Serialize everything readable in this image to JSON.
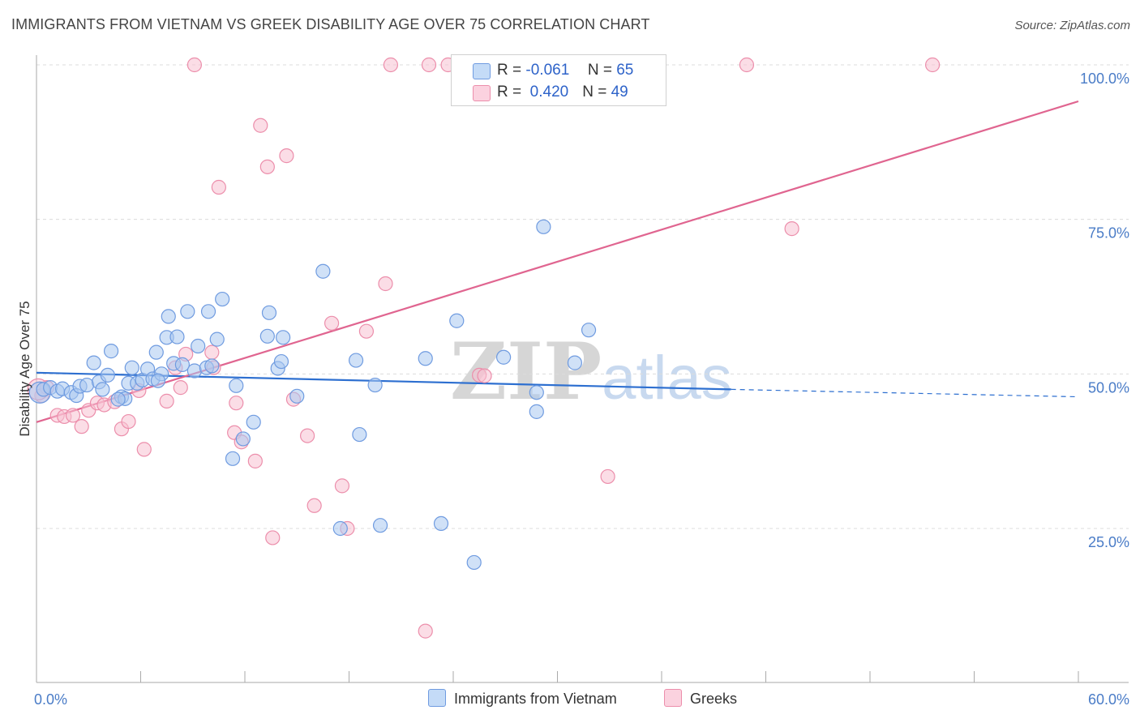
{
  "header": {
    "title": "IMMIGRANTS FROM VIETNAM VS GREEK DISABILITY AGE OVER 75 CORRELATION CHART",
    "source": "Source: ZipAtlas.com"
  },
  "watermark": {
    "zip": "ZIP",
    "atlas": "atlas"
  },
  "stats_legend": [
    {
      "r_label": "R =",
      "r_value": "-0.061",
      "n_label": "N =",
      "n_value": "65",
      "color": "#a9c8f0"
    },
    {
      "r_label": "R =",
      "r_value": " 0.420",
      "n_label": "N =",
      "n_value": "49",
      "color": "#f7b8cc"
    }
  ],
  "bottom_legend": [
    {
      "label": "Immigrants from Vietnam",
      "color": "#a9c8f0"
    },
    {
      "label": "Greeks",
      "color": "#f7b8cc"
    }
  ],
  "colors": {
    "blue_point_fill": "#a9c8f0",
    "blue_point_stroke": "#6f9be0",
    "pink_point_fill": "#f7c1d1",
    "pink_point_stroke": "#ec8eab",
    "blue_line": "#2d6fd0",
    "pink_line": "#e06590",
    "tick_label": "#4a7cc7",
    "grid": "#dcdcdc"
  },
  "chart_data": {
    "type": "scatter",
    "title": "IMMIGRANTS FROM VIETNAM VS GREEK DISABILITY AGE OVER 75 CORRELATION CHART",
    "xlabel": "",
    "ylabel": "Disability Age Over 75",
    "xlim": [
      0,
      60
    ],
    "ylim": [
      0,
      105
    ],
    "x_tick_labels": [
      "0.0%",
      "60.0%"
    ],
    "y_ticks": [
      25,
      50,
      75,
      100
    ],
    "y_tick_labels": [
      "25.0%",
      "50.0%",
      "75.0%",
      "100.0%"
    ],
    "grid": true,
    "legend_position": "top-center",
    "series": [
      {
        "name": "Immigrants from Vietnam",
        "r": -0.061,
        "n": 65,
        "trend": {
          "x0": 0,
          "y0": 50.2,
          "x1": 40,
          "y1": 47.5,
          "dashed_to_x": 60,
          "dashed_to_y": 46.3
        },
        "points": [
          [
            0.2,
            47.0
          ],
          [
            0.4,
            47.5
          ],
          [
            0.8,
            47.8
          ],
          [
            1.2,
            47.2
          ],
          [
            1.5,
            47.6
          ],
          [
            2.0,
            47.0
          ],
          [
            2.3,
            46.5
          ],
          [
            2.5,
            48.0
          ],
          [
            2.9,
            48.2
          ],
          [
            3.3,
            51.8
          ],
          [
            3.6,
            48.7
          ],
          [
            3.8,
            47.5
          ],
          [
            4.1,
            49.8
          ],
          [
            4.3,
            53.7
          ],
          [
            4.9,
            46.3
          ],
          [
            5.1,
            46.0
          ],
          [
            5.3,
            48.5
          ],
          [
            5.5,
            51.0
          ],
          [
            5.8,
            48.5
          ],
          [
            6.1,
            49.0
          ],
          [
            6.4,
            50.8
          ],
          [
            6.7,
            49.2
          ],
          [
            6.9,
            53.5
          ],
          [
            7.2,
            50.0
          ],
          [
            7.5,
            55.9
          ],
          [
            7.6,
            59.3
          ],
          [
            7.9,
            51.7
          ],
          [
            8.1,
            56.0
          ],
          [
            8.4,
            51.5
          ],
          [
            8.7,
            60.1
          ],
          [
            9.1,
            50.5
          ],
          [
            9.3,
            54.5
          ],
          [
            9.8,
            51.0
          ],
          [
            9.9,
            60.1
          ],
          [
            10.4,
            55.6
          ],
          [
            10.7,
            62.1
          ],
          [
            11.5,
            48.1
          ],
          [
            11.9,
            39.5
          ],
          [
            11.3,
            36.3
          ],
          [
            12.5,
            42.2
          ],
          [
            13.3,
            56.1
          ],
          [
            13.4,
            59.9
          ],
          [
            13.9,
            50.9
          ],
          [
            14.1,
            52.0
          ],
          [
            14.2,
            55.9
          ],
          [
            15.0,
            46.4
          ],
          [
            16.5,
            66.6
          ],
          [
            17.5,
            25.0
          ],
          [
            18.4,
            52.2
          ],
          [
            18.6,
            40.2
          ],
          [
            19.5,
            48.2
          ],
          [
            19.8,
            25.5
          ],
          [
            22.4,
            52.5
          ],
          [
            23.3,
            25.8
          ],
          [
            24.2,
            58.6
          ],
          [
            25.2,
            19.5
          ],
          [
            26.9,
            52.7
          ],
          [
            28.8,
            47.0
          ],
          [
            28.8,
            43.9
          ],
          [
            29.2,
            73.8
          ],
          [
            31.0,
            51.8
          ],
          [
            31.8,
            57.1
          ],
          [
            4.7,
            45.9
          ],
          [
            10.1,
            51.3
          ],
          [
            7.0,
            48.9
          ]
        ]
      },
      {
        "name": "Greeks",
        "r": 0.42,
        "n": 49,
        "trend": {
          "x0": 0,
          "y0": 42.2,
          "x1": 60,
          "y1": 94.1
        },
        "points": [
          [
            0.3,
            46.5
          ],
          [
            0.6,
            47.8
          ],
          [
            1.2,
            43.3
          ],
          [
            1.6,
            43.1
          ],
          [
            2.1,
            43.3
          ],
          [
            2.6,
            41.5
          ],
          [
            3.0,
            44.1
          ],
          [
            3.5,
            45.3
          ],
          [
            3.9,
            45.0
          ],
          [
            4.5,
            45.5
          ],
          [
            4.9,
            41.1
          ],
          [
            5.3,
            42.3
          ],
          [
            5.9,
            47.3
          ],
          [
            6.2,
            37.8
          ],
          [
            7.5,
            45.6
          ],
          [
            8.0,
            51.0
          ],
          [
            8.3,
            47.8
          ],
          [
            8.6,
            53.2
          ],
          [
            9.1,
            100.0
          ],
          [
            10.1,
            53.5
          ],
          [
            10.2,
            51.0
          ],
          [
            10.5,
            80.2
          ],
          [
            11.4,
            40.5
          ],
          [
            11.5,
            45.3
          ],
          [
            11.8,
            39.0
          ],
          [
            12.6,
            35.9
          ],
          [
            12.9,
            90.2
          ],
          [
            13.3,
            83.5
          ],
          [
            13.6,
            23.5
          ],
          [
            14.4,
            85.3
          ],
          [
            14.8,
            45.9
          ],
          [
            15.6,
            40.0
          ],
          [
            16.0,
            28.7
          ],
          [
            17.0,
            58.2
          ],
          [
            17.6,
            31.9
          ],
          [
            17.9,
            25.0
          ],
          [
            19.0,
            56.9
          ],
          [
            20.1,
            64.6
          ],
          [
            20.4,
            100.0
          ],
          [
            22.4,
            8.4
          ],
          [
            22.6,
            100.0
          ],
          [
            23.7,
            100.0
          ],
          [
            25.5,
            49.8
          ],
          [
            25.8,
            49.7
          ],
          [
            32.9,
            33.4
          ],
          [
            40.9,
            100.0
          ],
          [
            43.5,
            73.5
          ],
          [
            51.6,
            100.0
          ],
          [
            0.1,
            47.5
          ]
        ]
      }
    ]
  }
}
